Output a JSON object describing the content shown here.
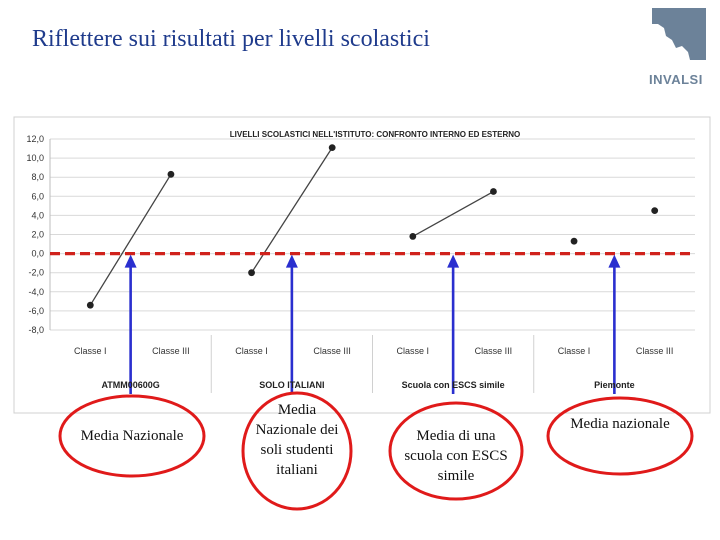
{
  "slide": {
    "title": "Riflettere sui risultati per livelli scolastici",
    "logo_text": "INVALSI"
  },
  "colors": {
    "title": "#1f3b8c",
    "reference_line": "#d0221c",
    "arrow": "#2a2fcf",
    "ellipse": "#e01a1a",
    "logo": "#6c8299"
  },
  "chart_data": {
    "type": "scatter",
    "title": "LIVELLI SCOLASTICI NELL'ISTITUTO: CONFRONTO INTERNO ED ESTERNO",
    "ylim": [
      -8,
      12
    ],
    "yticks": [
      "12,0",
      "10,0",
      "8,0",
      "6,0",
      "4,0",
      "2,0",
      "0,0",
      "-2,0",
      "-4,0",
      "-6,0",
      "-8,0"
    ],
    "grid": true,
    "reference_line": 0,
    "groups": [
      {
        "name": "ATMM00600G",
        "categories": [
          "Classe I",
          "Classe III"
        ],
        "values": [
          -5.4,
          8.3
        ],
        "connected": true
      },
      {
        "name": "SOLO ITALIANI",
        "categories": [
          "Classe I",
          "Classe III"
        ],
        "values": [
          -2.0,
          11.1
        ],
        "connected": true
      },
      {
        "name": "Scuola con ESCS simile",
        "categories": [
          "Classe I",
          "Classe III"
        ],
        "values": [
          1.8,
          6.5
        ],
        "connected": true
      },
      {
        "name": "Piemonte",
        "categories": [
          "Classe I",
          "Classe III"
        ],
        "values": [
          1.3,
          4.5
        ],
        "connected": false
      }
    ]
  },
  "callouts": [
    {
      "text": "Media Nazionale"
    },
    {
      "text": "Media Nazionale dei soli studenti italiani"
    },
    {
      "text": "Media di una scuola con ESCS simile"
    },
    {
      "text": "Media nazionale"
    }
  ]
}
